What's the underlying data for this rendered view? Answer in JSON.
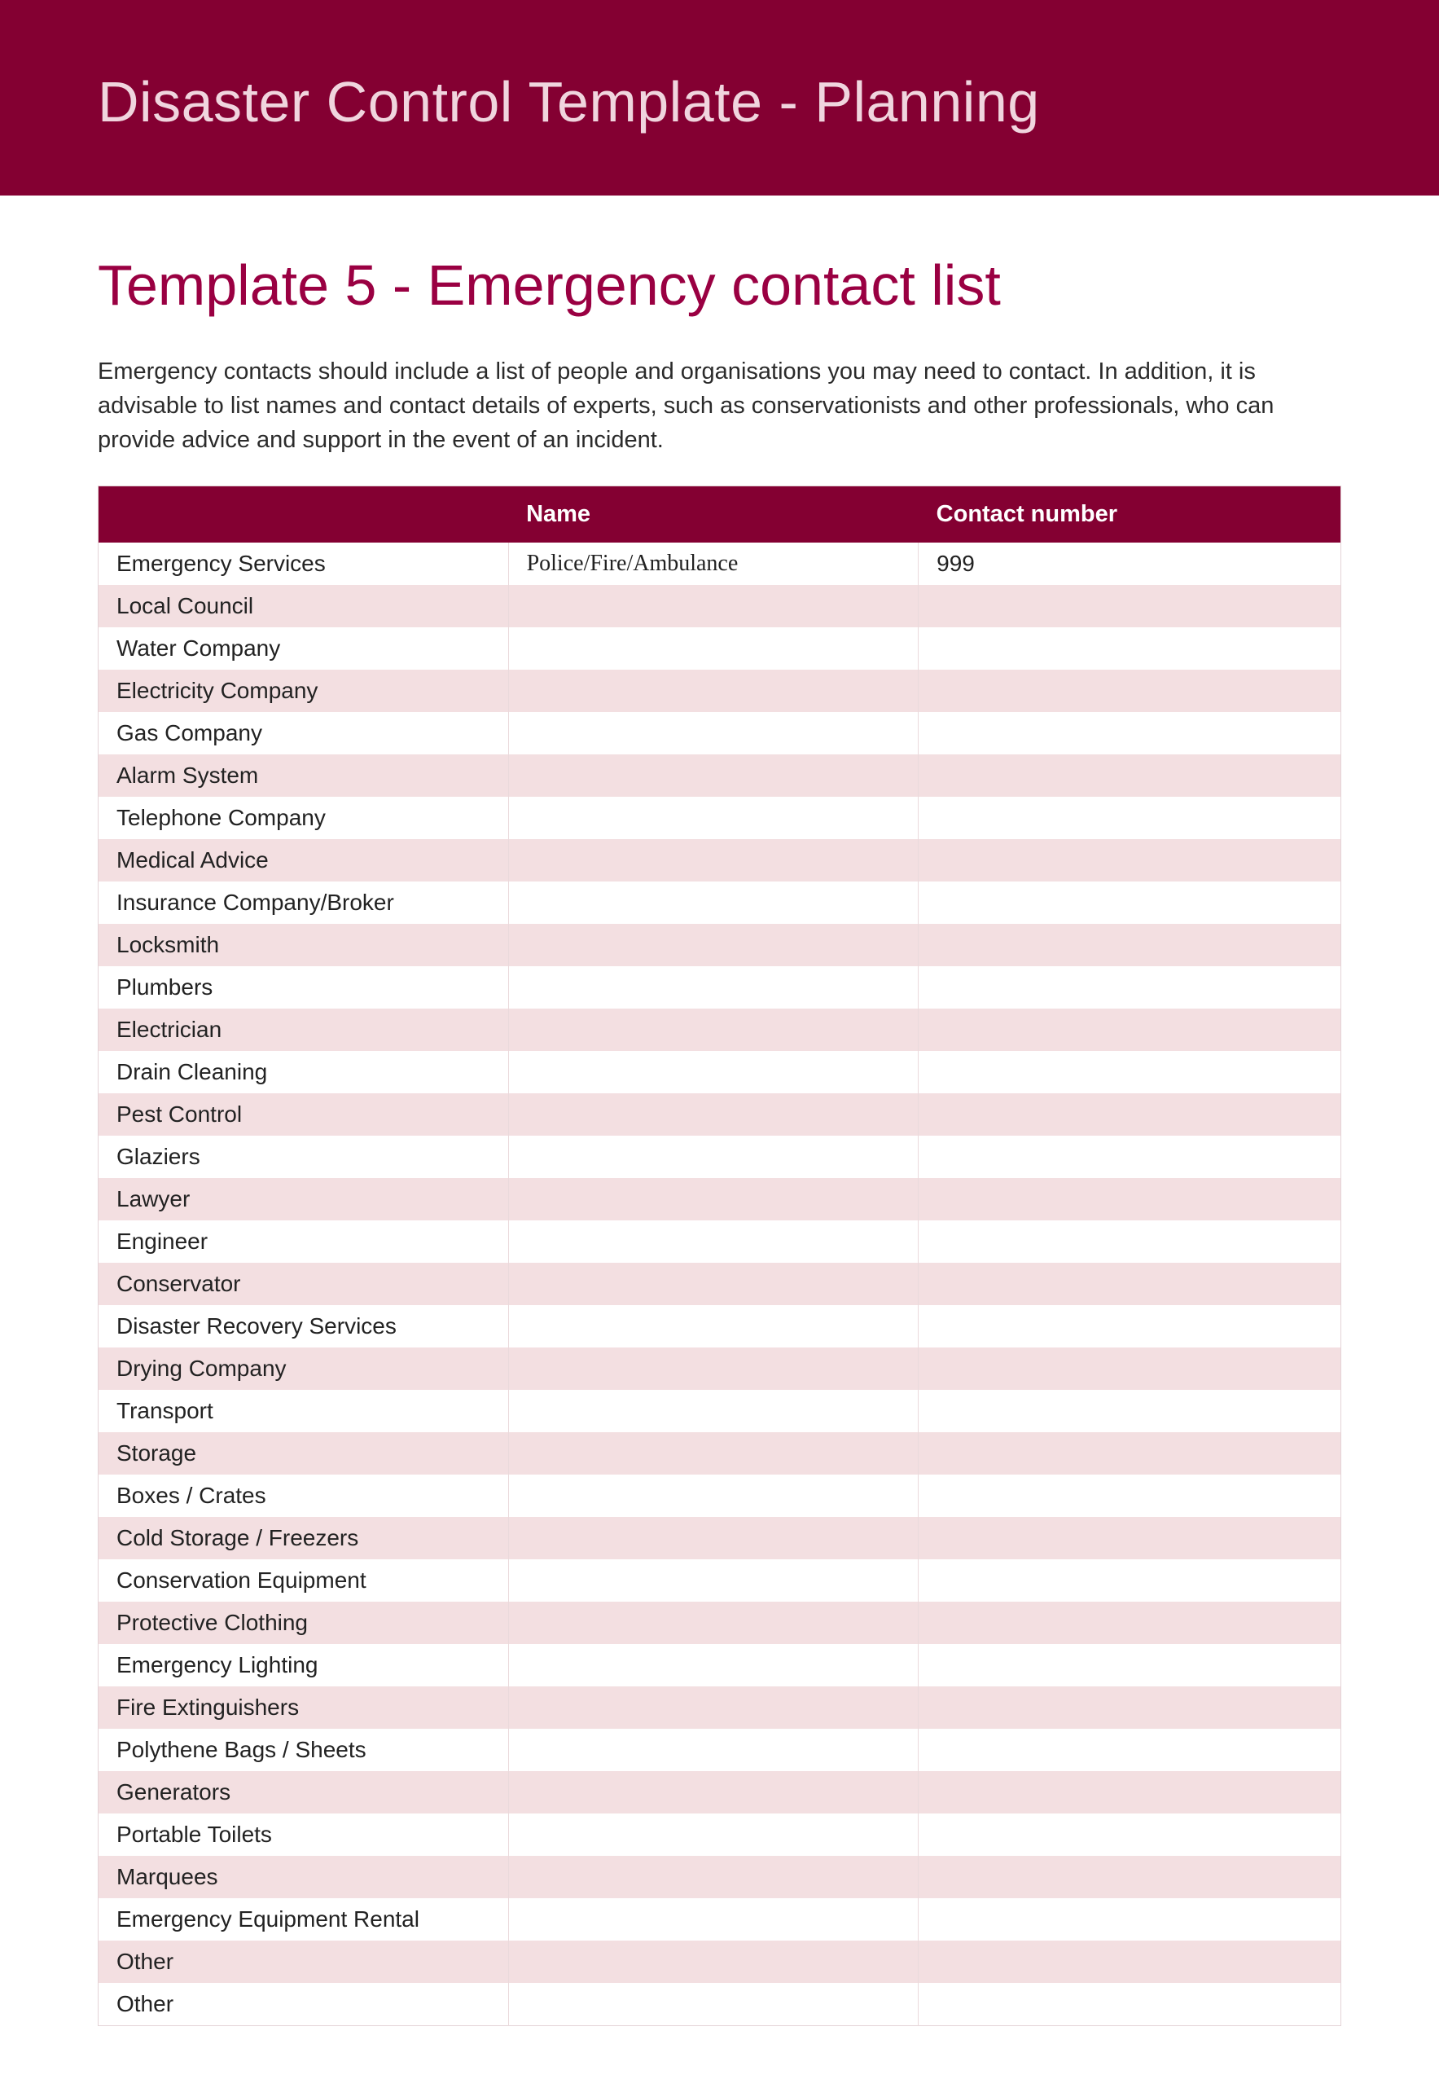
{
  "colors": {
    "banner_bg": "#840032",
    "banner_text": "#f0d5de",
    "subtitle": "#9a0042",
    "body_text": "#2b2b2b",
    "row_odd": "#f3dfe1",
    "row_even": "#ffffff",
    "border": "#e4d3d6"
  },
  "banner": {
    "title": "Disaster Control Template - Planning"
  },
  "page": {
    "subtitle": "Template 5 - Emergency contact list",
    "intro": "Emergency contacts should include a list of people and organisations you may need to contact. In addition, it is advisable to list names and contact details of experts, such as conservationists and other professionals, who can provide advice and support in the event of an incident."
  },
  "table": {
    "headers": {
      "category": "",
      "name": "Name",
      "contact": "Contact number"
    },
    "rows": [
      {
        "category": "Emergency Services",
        "name": "Police/Fire/Ambulance",
        "contact": "999"
      },
      {
        "category": "Local Council",
        "name": "",
        "contact": ""
      },
      {
        "category": "Water Company",
        "name": "",
        "contact": ""
      },
      {
        "category": "Electricity Company",
        "name": "",
        "contact": ""
      },
      {
        "category": "Gas Company",
        "name": "",
        "contact": ""
      },
      {
        "category": "Alarm System",
        "name": "",
        "contact": ""
      },
      {
        "category": "Telephone Company",
        "name": "",
        "contact": ""
      },
      {
        "category": "Medical Advice",
        "name": "",
        "contact": ""
      },
      {
        "category": "Insurance Company/Broker",
        "name": "",
        "contact": ""
      },
      {
        "category": "Locksmith",
        "name": "",
        "contact": ""
      },
      {
        "category": "Plumbers",
        "name": "",
        "contact": ""
      },
      {
        "category": "Electrician",
        "name": "",
        "contact": ""
      },
      {
        "category": "Drain Cleaning",
        "name": "",
        "contact": ""
      },
      {
        "category": "Pest Control",
        "name": "",
        "contact": ""
      },
      {
        "category": "Glaziers",
        "name": "",
        "contact": ""
      },
      {
        "category": "Lawyer",
        "name": "",
        "contact": ""
      },
      {
        "category": "Engineer",
        "name": "",
        "contact": ""
      },
      {
        "category": "Conservator",
        "name": "",
        "contact": ""
      },
      {
        "category": "Disaster Recovery Services",
        "name": "",
        "contact": ""
      },
      {
        "category": "Drying Company",
        "name": "",
        "contact": ""
      },
      {
        "category": "Transport",
        "name": "",
        "contact": ""
      },
      {
        "category": "Storage",
        "name": "",
        "contact": ""
      },
      {
        "category": "Boxes / Crates",
        "name": "",
        "contact": ""
      },
      {
        "category": "Cold Storage / Freezers",
        "name": "",
        "contact": ""
      },
      {
        "category": "Conservation Equipment",
        "name": "",
        "contact": ""
      },
      {
        "category": "Protective Clothing",
        "name": "",
        "contact": ""
      },
      {
        "category": "Emergency Lighting",
        "name": "",
        "contact": ""
      },
      {
        "category": "Fire Extinguishers",
        "name": "",
        "contact": ""
      },
      {
        "category": "Polythene Bags / Sheets",
        "name": "",
        "contact": ""
      },
      {
        "category": "Generators",
        "name": "",
        "contact": ""
      },
      {
        "category": "Portable Toilets",
        "name": "",
        "contact": ""
      },
      {
        "category": "Marquees",
        "name": "",
        "contact": ""
      },
      {
        "category": "Emergency Equipment Rental",
        "name": "",
        "contact": ""
      },
      {
        "category": "Other",
        "name": "",
        "contact": ""
      },
      {
        "category": "Other",
        "name": "",
        "contact": ""
      }
    ]
  }
}
